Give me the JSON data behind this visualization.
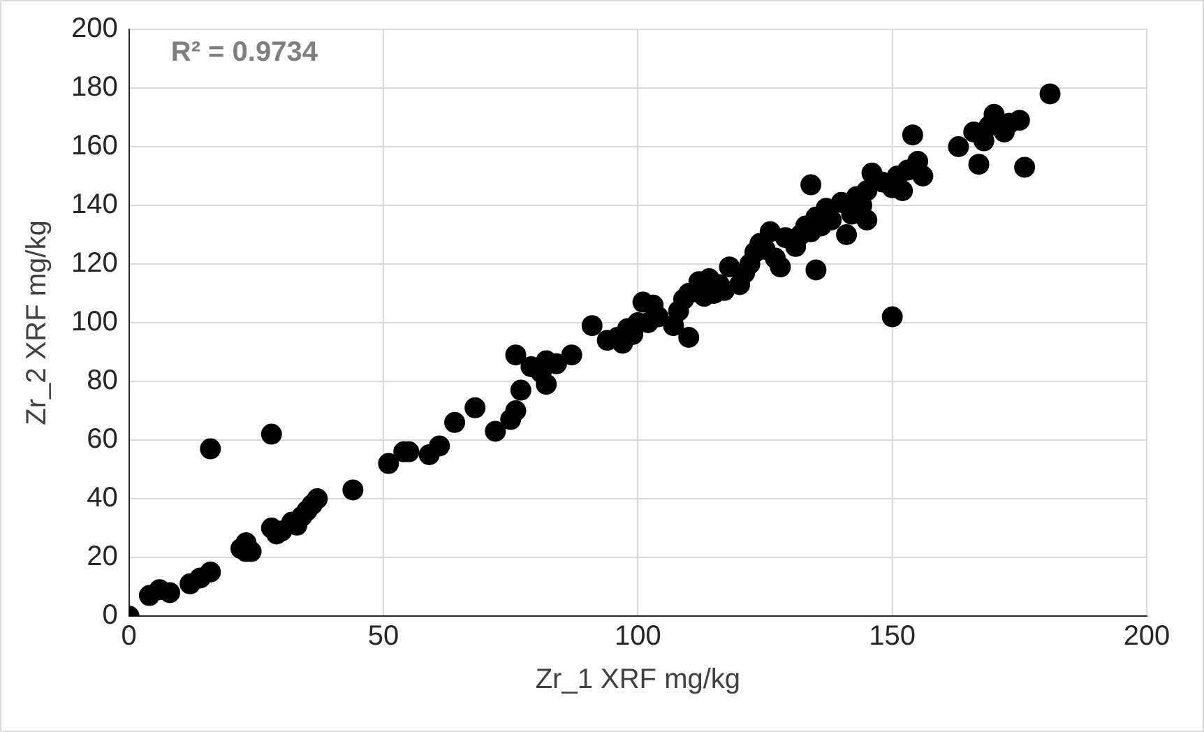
{
  "chart_data": {
    "type": "scatter",
    "xlabel": "Zr_1 XRF mg/kg",
    "ylabel": "Zr_2 XRF mg/kg",
    "annotations": [
      "R² = 0.9734"
    ],
    "xlim": [
      0,
      200
    ],
    "xticks": [
      0,
      50,
      100,
      150,
      200
    ],
    "ylim": [
      0,
      200
    ],
    "yticks": [
      0,
      20,
      40,
      60,
      80,
      100,
      120,
      140,
      160,
      180,
      200
    ],
    "grid": true,
    "marker": "circle",
    "series": [
      {
        "color": "#000000",
        "x": [
          0,
          4,
          6,
          8,
          12,
          14,
          16,
          16,
          22,
          23,
          23,
          24,
          28,
          28,
          29,
          30,
          32,
          33,
          34,
          35,
          36,
          37,
          44,
          51,
          54,
          55,
          59,
          61,
          64,
          68,
          72,
          75,
          76,
          76,
          77,
          79,
          81,
          82,
          82,
          84,
          87,
          91,
          94,
          96,
          97,
          98,
          99,
          100,
          101,
          102,
          103,
          104,
          107,
          108,
          109,
          110,
          110,
          112,
          113,
          114,
          115,
          116,
          117,
          118,
          120,
          121,
          122,
          123,
          124,
          125,
          126,
          127,
          128,
          129,
          131,
          132,
          133,
          134,
          134,
          135,
          135,
          136,
          137,
          138,
          140,
          141,
          142,
          143,
          144,
          145,
          145,
          146,
          148,
          150,
          150,
          151,
          152,
          153,
          154,
          155,
          156,
          163,
          166,
          167,
          168,
          169,
          170,
          172,
          173,
          175,
          176,
          181
        ],
        "values": [
          0,
          7,
          9,
          8,
          11,
          13,
          15,
          57,
          23,
          25,
          22,
          22,
          62,
          30,
          28,
          29,
          32,
          31,
          34,
          36,
          38,
          40,
          43,
          52,
          56,
          56,
          55,
          58,
          66,
          71,
          63,
          67,
          70,
          89,
          77,
          85,
          83,
          79,
          87,
          86,
          89,
          99,
          94,
          95,
          93,
          98,
          96,
          100,
          107,
          100,
          106,
          102,
          99,
          104,
          108,
          95,
          110,
          114,
          109,
          115,
          110,
          113,
          111,
          119,
          113,
          117,
          120,
          124,
          127,
          125,
          131,
          122,
          119,
          129,
          126,
          130,
          133,
          147,
          131,
          118,
          136,
          133,
          139,
          135,
          141,
          130,
          137,
          143,
          140,
          145,
          135,
          151,
          148,
          102,
          146,
          150,
          145,
          152,
          164,
          155,
          150,
          160,
          165,
          154,
          162,
          167,
          171,
          165,
          168,
          169,
          153,
          178
        ]
      }
    ]
  }
}
